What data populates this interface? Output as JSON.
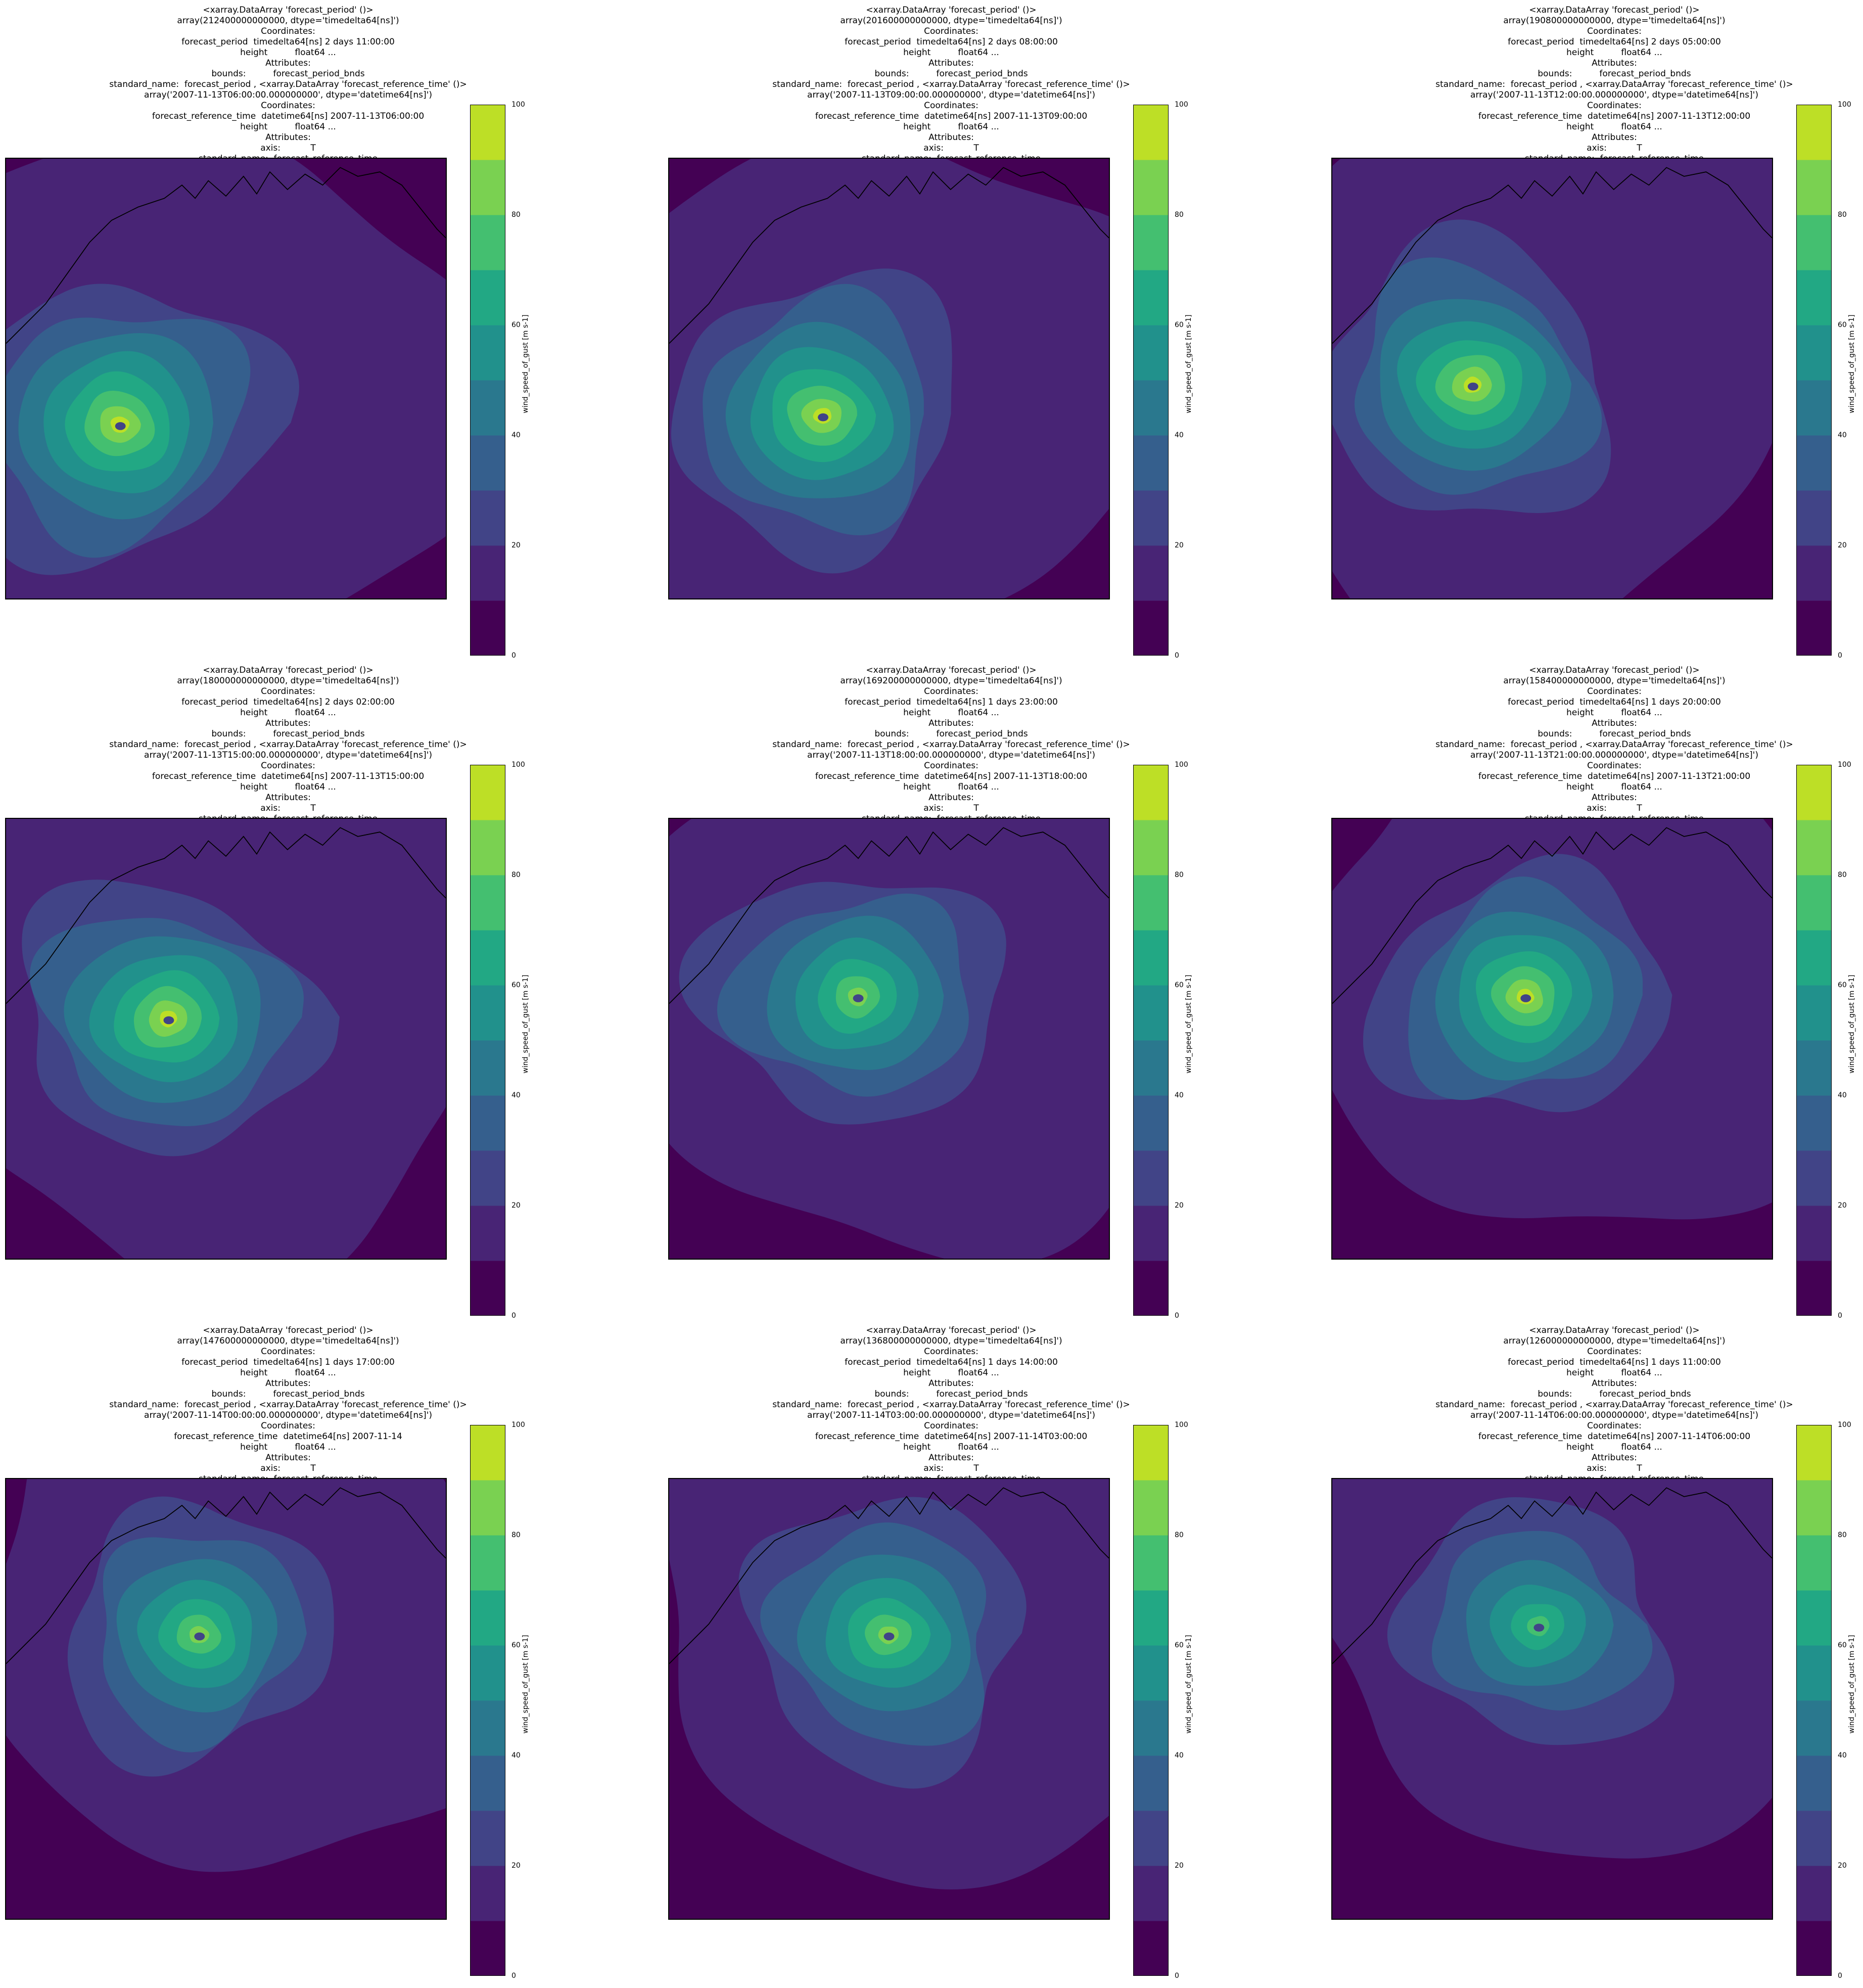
{
  "chart_data": [
    {
      "type": "heatmap",
      "title_lines": [
        "<xarray.DataArray 'forecast_period' ()>",
        "array(212400000000000, dtype='timedelta64[ns]')",
        "Coordinates:",
        "forecast_period  timedelta64[ns] 2 days 11:00:00",
        "height          float64 ...",
        "Attributes:",
        "bounds:          forecast_period_bnds",
        "standard_name:  forecast_period , <xarray.DataArray 'forecast_reference_time' ()>",
        "array('2007-11-13T06:00:00.000000000', dtype='datetime64[ns]')",
        "Coordinates:",
        "forecast_reference_time  datetime64[ns] 2007-11-13T06:00:00",
        "height          float64 ...",
        "Attributes:",
        "axis:           T",
        "standard_name:  forecast_reference_time"
      ],
      "colorbar_label": "wind_speed_of_gust [m s-1]",
      "colorbar_ticks": [
        "0",
        "20",
        "40",
        "60",
        "80",
        "100"
      ],
      "levels": [
        0,
        10,
        20,
        30,
        40,
        50,
        60,
        70,
        80,
        90,
        100
      ],
      "cyclone_center": [
        0.25,
        0.6
      ],
      "peak_gust": 95,
      "outer_extent": 0.42
    },
    {
      "type": "heatmap",
      "title_lines": [
        "<xarray.DataArray 'forecast_period' ()>",
        "array(201600000000000, dtype='timedelta64[ns]')",
        "Coordinates:",
        "forecast_period  timedelta64[ns] 2 days 08:00:00",
        "height          float64 ...",
        "Attributes:",
        "bounds:          forecast_period_bnds",
        "standard_name:  forecast_period , <xarray.DataArray 'forecast_reference_time' ()>",
        "array('2007-11-13T09:00:00.000000000', dtype='datetime64[ns]')",
        "Coordinates:",
        "forecast_reference_time  datetime64[ns] 2007-11-13T09:00:00",
        "height          float64 ...",
        "Attributes:",
        "axis:           T",
        "standard_name:  forecast_reference_time"
      ],
      "colorbar_label": "wind_speed_of_gust [m s-1]",
      "colorbar_ticks": [
        "0",
        "20",
        "40",
        "60",
        "80",
        "100"
      ],
      "levels": [
        0,
        10,
        20,
        30,
        40,
        50,
        60,
        70,
        80,
        90,
        100
      ],
      "cyclone_center": [
        0.34,
        0.58
      ],
      "peak_gust": 90,
      "outer_extent": 0.4
    },
    {
      "type": "heatmap",
      "title_lines": [
        "<xarray.DataArray 'forecast_period' ()>",
        "array(190800000000000, dtype='timedelta64[ns]')",
        "Coordinates:",
        "forecast_period  timedelta64[ns] 2 days 05:00:00",
        "height          float64 ...",
        "Attributes:",
        "bounds:          forecast_period_bnds",
        "standard_name:  forecast_period , <xarray.DataArray 'forecast_reference_time' ()>",
        "array('2007-11-13T12:00:00.000000000', dtype='datetime64[ns]')",
        "Coordinates:",
        "forecast_reference_time  datetime64[ns] 2007-11-13T12:00:00",
        "height          float64 ...",
        "Attributes:",
        "axis:           T",
        "standard_name:  forecast_reference_time"
      ],
      "colorbar_label": "wind_speed_of_gust [m s-1]",
      "colorbar_ticks": [
        "0",
        "20",
        "40",
        "60",
        "80",
        "100"
      ],
      "levels": [
        0,
        10,
        20,
        30,
        40,
        50,
        60,
        70,
        80,
        90,
        100
      ],
      "cyclone_center": [
        0.31,
        0.51
      ],
      "peak_gust": 95,
      "outer_extent": 0.4
    },
    {
      "type": "heatmap",
      "title_lines": [
        "<xarray.DataArray 'forecast_period' ()>",
        "array(180000000000000, dtype='timedelta64[ns]')",
        "Coordinates:",
        "forecast_period  timedelta64[ns] 2 days 02:00:00",
        "height          float64 ...",
        "Attributes:",
        "bounds:          forecast_period_bnds",
        "standard_name:  forecast_period , <xarray.DataArray 'forecast_reference_time' ()>",
        "array('2007-11-13T15:00:00.000000000', dtype='datetime64[ns]')",
        "Coordinates:",
        "forecast_reference_time  datetime64[ns] 2007-11-13T15:00:00",
        "height          float64 ...",
        "Attributes:",
        "axis:           T",
        "standard_name:  forecast_reference_time"
      ],
      "colorbar_label": "wind_speed_of_gust [m s-1]",
      "colorbar_ticks": [
        "0",
        "20",
        "40",
        "60",
        "80",
        "100"
      ],
      "levels": [
        0,
        10,
        20,
        30,
        40,
        50,
        60,
        70,
        80,
        90,
        100
      ],
      "cyclone_center": [
        0.36,
        0.45
      ],
      "peak_gust": 90,
      "outer_extent": 0.4
    },
    {
      "type": "heatmap",
      "title_lines": [
        "<xarray.DataArray 'forecast_period' ()>",
        "array(169200000000000, dtype='timedelta64[ns]')",
        "Coordinates:",
        "forecast_period  timedelta64[ns] 1 days 23:00:00",
        "height          float64 ...",
        "Attributes:",
        "bounds:          forecast_period_bnds",
        "standard_name:  forecast_period , <xarray.DataArray 'forecast_reference_time' ()>",
        "array('2007-11-13T18:00:00.000000000', dtype='datetime64[ns]')",
        "Coordinates:",
        "forecast_reference_time  datetime64[ns] 2007-11-13T18:00:00",
        "height          float64 ...",
        "Attributes:",
        "axis:           T",
        "standard_name:  forecast_reference_time"
      ],
      "colorbar_label": "wind_speed_of_gust [m s-1]",
      "colorbar_ticks": [
        "0",
        "20",
        "40",
        "60",
        "80",
        "100"
      ],
      "levels": [
        0,
        10,
        20,
        30,
        40,
        50,
        60,
        70,
        80,
        90,
        100
      ],
      "cyclone_center": [
        0.42,
        0.4
      ],
      "peak_gust": 85,
      "outer_extent": 0.4
    },
    {
      "type": "heatmap",
      "title_lines": [
        "<xarray.DataArray 'forecast_period' ()>",
        "array(158400000000000, dtype='timedelta64[ns]')",
        "Coordinates:",
        "forecast_period  timedelta64[ns] 1 days 20:00:00",
        "height          float64 ...",
        "Attributes:",
        "bounds:          forecast_period_bnds",
        "standard_name:  forecast_period , <xarray.DataArray 'forecast_reference_time' ()>",
        "array('2007-11-13T21:00:00.000000000', dtype='datetime64[ns]')",
        "Coordinates:",
        "forecast_reference_time  datetime64[ns] 2007-11-13T21:00:00",
        "height          float64 ...",
        "Attributes:",
        "axis:           T",
        "standard_name:  forecast_reference_time"
      ],
      "colorbar_label": "wind_speed_of_gust [m s-1]",
      "colorbar_ticks": [
        "0",
        "20",
        "40",
        "60",
        "80",
        "100"
      ],
      "levels": [
        0,
        10,
        20,
        30,
        40,
        50,
        60,
        70,
        80,
        90,
        100
      ],
      "cyclone_center": [
        0.43,
        0.4
      ],
      "peak_gust": 90,
      "outer_extent": 0.38
    },
    {
      "type": "heatmap",
      "title_lines": [
        "<xarray.DataArray 'forecast_period' ()>",
        "array(147600000000000, dtype='timedelta64[ns]')",
        "Coordinates:",
        "forecast_period  timedelta64[ns] 1 days 17:00:00",
        "height          float64 ...",
        "Attributes:",
        "bounds:          forecast_period_bnds",
        "standard_name:  forecast_period , <xarray.DataArray 'forecast_reference_time' ()>",
        "array('2007-11-14T00:00:00.000000000', dtype='datetime64[ns]')",
        "Coordinates:",
        "forecast_reference_time  datetime64[ns] 2007-11-14",
        "height          float64 ...",
        "Attributes:",
        "axis:           T",
        "standard_name:  forecast_reference_time"
      ],
      "colorbar_label": "wind_speed_of_gust [m s-1]",
      "colorbar_ticks": [
        "0",
        "20",
        "40",
        "60",
        "80",
        "100"
      ],
      "levels": [
        0,
        10,
        20,
        30,
        40,
        50,
        60,
        70,
        80,
        90,
        100
      ],
      "cyclone_center": [
        0.43,
        0.35
      ],
      "peak_gust": 85,
      "outer_extent": 0.38
    },
    {
      "type": "heatmap",
      "title_lines": [
        "<xarray.DataArray 'forecast_period' ()>",
        "array(136800000000000, dtype='timedelta64[ns]')",
        "Coordinates:",
        "forecast_period  timedelta64[ns] 1 days 14:00:00",
        "height          float64 ...",
        "Attributes:",
        "bounds:          forecast_period_bnds",
        "standard_name:  forecast_period , <xarray.DataArray 'forecast_reference_time' ()>",
        "array('2007-11-14T03:00:00.000000000', dtype='datetime64[ns]')",
        "Coordinates:",
        "forecast_reference_time  datetime64[ns] 2007-11-14T03:00:00",
        "height          float64 ...",
        "Attributes:",
        "axis:           T",
        "standard_name:  forecast_reference_time"
      ],
      "colorbar_label": "wind_speed_of_gust [m s-1]",
      "colorbar_ticks": [
        "0",
        "20",
        "40",
        "60",
        "80",
        "100"
      ],
      "levels": [
        0,
        10,
        20,
        30,
        40,
        50,
        60,
        70,
        80,
        90,
        100
      ],
      "cyclone_center": [
        0.49,
        0.35
      ],
      "peak_gust": 80,
      "outer_extent": 0.4
    },
    {
      "type": "heatmap",
      "title_lines": [
        "<xarray.DataArray 'forecast_period' ()>",
        "array(126000000000000, dtype='timedelta64[ns]')",
        "Coordinates:",
        "forecast_period  timedelta64[ns] 1 days 11:00:00",
        "height          float64 ...",
        "Attributes:",
        "bounds:          forecast_period_bnds",
        "standard_name:  forecast_period , <xarray.DataArray 'forecast_reference_time' ()>",
        "array('2007-11-14T06:00:00.000000000', dtype='datetime64[ns]')",
        "Coordinates:",
        "forecast_reference_time  datetime64[ns] 2007-11-14T06:00:00",
        "height          float64 ...",
        "Attributes:",
        "axis:           T",
        "standard_name:  forecast_reference_time"
      ],
      "colorbar_label": "wind_speed_of_gust [m s-1]",
      "colorbar_ticks": [
        "0",
        "20",
        "40",
        "60",
        "80",
        "100"
      ],
      "levels": [
        0,
        10,
        20,
        30,
        40,
        50,
        60,
        70,
        80,
        90,
        100
      ],
      "cyclone_center": [
        0.46,
        0.33
      ],
      "peak_gust": 70,
      "outer_extent": 0.38
    }
  ],
  "colormap": [
    "#440154",
    "#482475",
    "#414487",
    "#355f8d",
    "#2a788e",
    "#21918c",
    "#22a884",
    "#44bf70",
    "#7ad151",
    "#bddf26",
    "#fde725"
  ]
}
